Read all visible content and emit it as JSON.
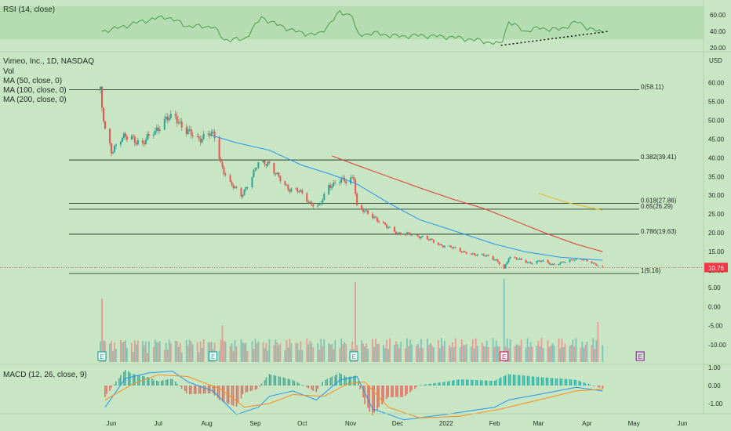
{
  "theme": {
    "background": "#c8e6c3",
    "rsi_band": "#b6ddb1",
    "grid": "#aed2a9",
    "text": "#1e2a22",
    "up": "#26a69a",
    "down": "#ef5350",
    "vol_up": "#7fc3b6",
    "vol_down": "#e89a94",
    "ma50": "#2196f3",
    "ma100": "#e53935",
    "ma200": "#f0b429",
    "macd": "#2196f3",
    "signal": "#ff8c1a",
    "rsi_line": "#43a047",
    "price_tag": "#f23645",
    "earnings_green": "#26a69a",
    "earnings_red": "#d81b60",
    "earnings_purple": "#9c27b0"
  },
  "rsi_pane": {
    "legend": "RSI (14, close)",
    "ticks": [
      "60.00",
      "40.00",
      "20.00"
    ]
  },
  "price_pane": {
    "title": "Vimeo, Inc., 1D, NASDAQ",
    "legend": [
      "Vol",
      "MA (50, close, 0)",
      "MA (100, close, 0)",
      "MA (200, close, 0)"
    ],
    "currency": "USD",
    "ticks": [
      "60.00",
      "55.00",
      "50.00",
      "45.00",
      "40.00",
      "35.00",
      "30.00",
      "25.00",
      "20.00",
      "15.00",
      "10.00"
    ],
    "last_price": "10.76",
    "fib_labels": [
      "0(58.11)",
      "0.382(39.41)",
      "0.618(27.86)",
      "0.65(26.29)",
      "0.786(19.63)",
      "1(9.16)"
    ]
  },
  "volume_pane": {
    "ticks": [
      "5.00",
      "0.00",
      "-5.00",
      "-10.00"
    ],
    "earnings_markers": [
      "E",
      "E",
      "E",
      "E",
      "E"
    ]
  },
  "macd_pane": {
    "legend": "MACD (12, 26, close, 9)",
    "ticks": [
      "1.00",
      "0.00",
      "-1.00"
    ]
  },
  "x_axis": {
    "labels": [
      "Jun",
      "Jul",
      "Aug",
      "Sep",
      "Oct",
      "Nov",
      "Dec",
      "2022",
      "Feb",
      "Mar",
      "Apr",
      "May",
      "Jun"
    ]
  },
  "chart_data": {
    "type": "candlestick",
    "title": "Vimeo, Inc., 1D, NASDAQ",
    "unit": "USD",
    "price_range": [
      5,
      63
    ],
    "last_price": 10.76,
    "grid": false,
    "x_domain": [
      "2021-05-24",
      "2022-06-08"
    ],
    "fibonacci_levels": [
      {
        "ratio": "0",
        "price": 58.11
      },
      {
        "ratio": "0.382",
        "price": 39.41
      },
      {
        "ratio": "0.618",
        "price": 27.86
      },
      {
        "ratio": "0.65",
        "price": 26.29
      },
      {
        "ratio": "0.786",
        "price": 19.63
      },
      {
        "ratio": "1",
        "price": 9.16
      }
    ],
    "close_path": [
      [
        "2021-05-25",
        57.5
      ],
      [
        "2021-05-26",
        53.0
      ],
      [
        "2021-05-28",
        47.0
      ],
      [
        "2021-06-01",
        42.0
      ],
      [
        "2021-06-07",
        45.0
      ],
      [
        "2021-06-14",
        45.5
      ],
      [
        "2021-06-21",
        43.5
      ],
      [
        "2021-06-28",
        47.0
      ],
      [
        "2021-07-06",
        50.0
      ],
      [
        "2021-07-12",
        51.0
      ],
      [
        "2021-07-19",
        47.0
      ],
      [
        "2021-07-26",
        45.0
      ],
      [
        "2021-08-02",
        46.5
      ],
      [
        "2021-08-06",
        45.5
      ],
      [
        "2021-08-10",
        38.5
      ],
      [
        "2021-08-16",
        33.0
      ],
      [
        "2021-08-23",
        30.0
      ],
      [
        "2021-08-30",
        35.0
      ],
      [
        "2021-09-03",
        38.5
      ],
      [
        "2021-09-09",
        39.0
      ],
      [
        "2021-09-15",
        35.0
      ],
      [
        "2021-09-22",
        32.0
      ],
      [
        "2021-09-29",
        31.0
      ],
      [
        "2021-10-06",
        28.0
      ],
      [
        "2021-10-12",
        27.0
      ],
      [
        "2021-10-18",
        32.5
      ],
      [
        "2021-10-25",
        34.0
      ],
      [
        "2021-10-29",
        33.5
      ],
      [
        "2021-11-03",
        35.0
      ],
      [
        "2021-11-05",
        27.0
      ],
      [
        "2021-11-10",
        25.5
      ],
      [
        "2021-11-17",
        24.0
      ],
      [
        "2021-11-24",
        21.5
      ],
      [
        "2021-12-01",
        20.0
      ],
      [
        "2021-12-10",
        19.5
      ],
      [
        "2021-12-17",
        19.0
      ],
      [
        "2021-12-27",
        17.0
      ],
      [
        "2022-01-05",
        16.0
      ],
      [
        "2022-01-12",
        15.0
      ],
      [
        "2022-01-19",
        14.0
      ],
      [
        "2022-01-26",
        14.2
      ],
      [
        "2022-02-02",
        12.5
      ],
      [
        "2022-02-07",
        10.5
      ],
      [
        "2022-02-10",
        13.5
      ],
      [
        "2022-02-17",
        12.8
      ],
      [
        "2022-02-24",
        12.0
      ],
      [
        "2022-03-04",
        12.5
      ],
      [
        "2022-03-11",
        11.5
      ],
      [
        "2022-03-16",
        12.0
      ],
      [
        "2022-03-23",
        13.0
      ],
      [
        "2022-03-30",
        12.8
      ],
      [
        "2022-04-05",
        12.0
      ],
      [
        "2022-04-11",
        10.76
      ]
    ],
    "ma50_path": [
      [
        "2021-08-04",
        46.0
      ],
      [
        "2021-08-20",
        44.0
      ],
      [
        "2021-09-10",
        42.0
      ],
      [
        "2021-10-01",
        38.0
      ],
      [
        "2021-10-20",
        35.5
      ],
      [
        "2021-11-05",
        33.0
      ],
      [
        "2021-11-25",
        28.0
      ],
      [
        "2021-12-15",
        23.5
      ],
      [
        "2022-01-10",
        20.0
      ],
      [
        "2022-02-01",
        17.0
      ],
      [
        "2022-02-20",
        15.0
      ],
      [
        "2022-03-15",
        13.5
      ],
      [
        "2022-04-11",
        12.7
      ]
    ],
    "ma100_path": [
      [
        "2021-10-20",
        40.5
      ],
      [
        "2021-11-05",
        38.0
      ],
      [
        "2021-11-25",
        35.0
      ],
      [
        "2021-12-15",
        32.0
      ],
      [
        "2022-01-05",
        29.0
      ],
      [
        "2022-01-25",
        26.5
      ],
      [
        "2022-02-15",
        23.0
      ],
      [
        "2022-03-05",
        20.0
      ],
      [
        "2022-03-25",
        17.0
      ],
      [
        "2022-04-11",
        15.0
      ]
    ],
    "ma200_path": [
      [
        "2022-03-01",
        30.5
      ],
      [
        "2022-03-20",
        28.0
      ],
      [
        "2022-04-11",
        26.0
      ]
    ],
    "volume_spikes": [
      {
        "date": "2021-05-26",
        "value": 9.5,
        "dir": "down"
      },
      {
        "date": "2021-08-11",
        "value": 5.5,
        "dir": "down"
      },
      {
        "date": "2021-11-04",
        "value": 12.0,
        "dir": "down"
      },
      {
        "date": "2022-02-07",
        "value": 12.5,
        "dir": "up"
      },
      {
        "date": "2022-04-08",
        "value": 6.0,
        "dir": "down"
      },
      {
        "date": "2022-04-12",
        "value": 4.0,
        "dir": "up"
      }
    ],
    "earnings_dates": [
      "2021-05-26",
      "2021-08-05",
      "2021-11-03",
      "2022-02-07",
      "2022-05-05"
    ],
    "rsi_path": [
      [
        "2021-05-26",
        40
      ],
      [
        "2021-06-05",
        44
      ],
      [
        "2021-06-20",
        52
      ],
      [
        "2021-07-06",
        58
      ],
      [
        "2021-07-20",
        46
      ],
      [
        "2021-08-05",
        46
      ],
      [
        "2021-08-12",
        30
      ],
      [
        "2021-08-25",
        30
      ],
      [
        "2021-09-05",
        57
      ],
      [
        "2021-09-15",
        48
      ],
      [
        "2021-09-30",
        38
      ],
      [
        "2021-10-12",
        36
      ],
      [
        "2021-10-25",
        63
      ],
      [
        "2021-11-02",
        60
      ],
      [
        "2021-11-05",
        35
      ],
      [
        "2021-11-15",
        38
      ],
      [
        "2021-12-01",
        34
      ],
      [
        "2021-12-15",
        35
      ],
      [
        "2022-01-05",
        33
      ],
      [
        "2022-01-25",
        28
      ],
      [
        "2022-02-05",
        24
      ],
      [
        "2022-02-10",
        52
      ],
      [
        "2022-02-20",
        40
      ],
      [
        "2022-03-01",
        44
      ],
      [
        "2022-03-15",
        42
      ],
      [
        "2022-03-25",
        52
      ],
      [
        "2022-04-01",
        45
      ],
      [
        "2022-04-11",
        38
      ]
    ],
    "rsi_trendline": [
      [
        "2022-02-05",
        23
      ],
      [
        "2022-04-15",
        40
      ]
    ],
    "macd_path": [
      [
        "2021-05-28",
        -1.2
      ],
      [
        "2021-06-10",
        0.4
      ],
      [
        "2021-06-25",
        0.7
      ],
      [
        "2021-07-10",
        0.8
      ],
      [
        "2021-07-20",
        0.2
      ],
      [
        "2021-08-05",
        -0.3
      ],
      [
        "2021-08-20",
        -1.6
      ],
      [
        "2021-09-03",
        -1.2
      ],
      [
        "2021-09-10",
        -0.6
      ],
      [
        "2021-09-25",
        -0.3
      ],
      [
        "2021-10-10",
        -0.8
      ],
      [
        "2021-10-25",
        0.3
      ],
      [
        "2021-11-05",
        0.5
      ],
      [
        "2021-11-15",
        -1.3
      ],
      [
        "2021-12-05",
        -1.9
      ],
      [
        "2022-01-01",
        -1.6
      ],
      [
        "2022-02-01",
        -1.2
      ],
      [
        "2022-02-10",
        -0.8
      ],
      [
        "2022-03-01",
        -0.5
      ],
      [
        "2022-03-25",
        -0.1
      ],
      [
        "2022-04-11",
        -0.3
      ]
    ],
    "signal_path": [
      [
        "2021-05-28",
        -0.8
      ],
      [
        "2021-06-15",
        0.1
      ],
      [
        "2021-07-01",
        0.6
      ],
      [
        "2021-07-20",
        0.5
      ],
      [
        "2021-08-10",
        -0.2
      ],
      [
        "2021-08-25",
        -1.2
      ],
      [
        "2021-09-10",
        -1.0
      ],
      [
        "2021-09-25",
        -0.5
      ],
      [
        "2021-10-15",
        -0.6
      ],
      [
        "2021-10-30",
        0.1
      ],
      [
        "2021-11-10",
        0.2
      ],
      [
        "2021-11-25",
        -1.2
      ],
      [
        "2021-12-15",
        -1.8
      ],
      [
        "2022-01-10",
        -1.7
      ],
      [
        "2022-02-05",
        -1.3
      ],
      [
        "2022-03-01",
        -0.8
      ],
      [
        "2022-03-25",
        -0.3
      ],
      [
        "2022-04-11",
        -0.2
      ]
    ]
  }
}
